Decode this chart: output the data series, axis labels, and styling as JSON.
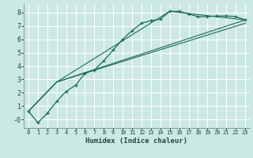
{
  "xlabel": "Humidex (Indice chaleur)",
  "background_color": "#cce8e4",
  "grid_color": "#ffffff",
  "line_color": "#1a6b5a",
  "xlim": [
    -0.5,
    23.5
  ],
  "ylim": [
    -0.65,
    8.65
  ],
  "xticks": [
    0,
    1,
    2,
    3,
    4,
    5,
    6,
    7,
    8,
    9,
    10,
    11,
    12,
    13,
    14,
    15,
    16,
    17,
    18,
    19,
    20,
    21,
    22,
    23
  ],
  "yticks": [
    0,
    1,
    2,
    3,
    4,
    5,
    6,
    7,
    8
  ],
  "ytick_labels": [
    "-0",
    "1",
    "2",
    "3",
    "4",
    "5",
    "6",
    "7",
    "8"
  ],
  "curve1_x": [
    0,
    1,
    2,
    3,
    4,
    5,
    6,
    7,
    8,
    9,
    10,
    11,
    12,
    13,
    14,
    15,
    16,
    17,
    18,
    19,
    20,
    21,
    22,
    23
  ],
  "curve1_y": [
    0.6,
    -0.25,
    0.45,
    1.35,
    2.1,
    2.55,
    3.45,
    3.7,
    4.4,
    5.2,
    6.0,
    6.65,
    7.2,
    7.4,
    7.5,
    8.1,
    8.1,
    7.9,
    7.7,
    7.7,
    7.75,
    7.75,
    7.7,
    7.45
  ],
  "curve2_x": [
    0,
    3,
    15,
    23
  ],
  "curve2_y": [
    0.6,
    2.8,
    8.1,
    7.45
  ],
  "curve3_x": [
    0,
    3,
    23
  ],
  "curve3_y": [
    0.6,
    2.8,
    7.45
  ],
  "curve4_x": [
    0,
    3,
    23
  ],
  "curve4_y": [
    0.6,
    2.8,
    7.2
  ]
}
